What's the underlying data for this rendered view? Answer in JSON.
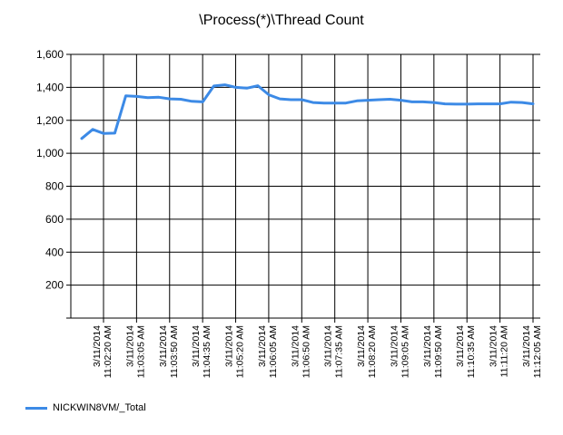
{
  "chart_data": {
    "type": "line",
    "title": "\\Process(*)\\Thread Count",
    "xlabel": "",
    "ylabel": "",
    "ylim": [
      0,
      1600
    ],
    "yticks": [
      "1,600",
      "1,400",
      "1,200",
      "1,000",
      "800",
      "600",
      "400",
      "200"
    ],
    "ytick_values": [
      1600,
      1400,
      1200,
      1000,
      800,
      600,
      400,
      200
    ],
    "grid": true,
    "legend_position": "bottom-left",
    "x_tick_labels": [
      [
        "3/11/2014",
        "11:02:20 AM"
      ],
      [
        "3/11/2014",
        "11:03:05 AM"
      ],
      [
        "3/11/2014",
        "11:03:50 AM"
      ],
      [
        "3/11/2014",
        "11:04:35 AM"
      ],
      [
        "3/11/2014",
        "11:05:20 AM"
      ],
      [
        "3/11/2014",
        "11:06:05 AM"
      ],
      [
        "3/11/2014",
        "11:06:50 AM"
      ],
      [
        "3/11/2014",
        "11:07:35 AM"
      ],
      [
        "3/11/2014",
        "11:08:20 AM"
      ],
      [
        "3/11/2014",
        "11:09:05 AM"
      ],
      [
        "3/11/2014",
        "11:09:50 AM"
      ],
      [
        "3/11/2014",
        "11:10:35 AM"
      ],
      [
        "3/11/2014",
        "11:11:20 AM"
      ],
      [
        "3/11/2014",
        "11:12:05 AM"
      ]
    ],
    "series": [
      {
        "name": "NICKWIN8VM/_Total",
        "color": "#3c8ae6",
        "values": [
          1090,
          1145,
          1120,
          1122,
          1348,
          1345,
          1338,
          1340,
          1330,
          1328,
          1315,
          1312,
          1408,
          1415,
          1400,
          1395,
          1410,
          1355,
          1330,
          1325,
          1325,
          1308,
          1305,
          1305,
          1305,
          1318,
          1322,
          1325,
          1328,
          1322,
          1312,
          1312,
          1308,
          1300,
          1298,
          1298,
          1300,
          1300,
          1300,
          1310,
          1308,
          1300
        ]
      }
    ]
  }
}
